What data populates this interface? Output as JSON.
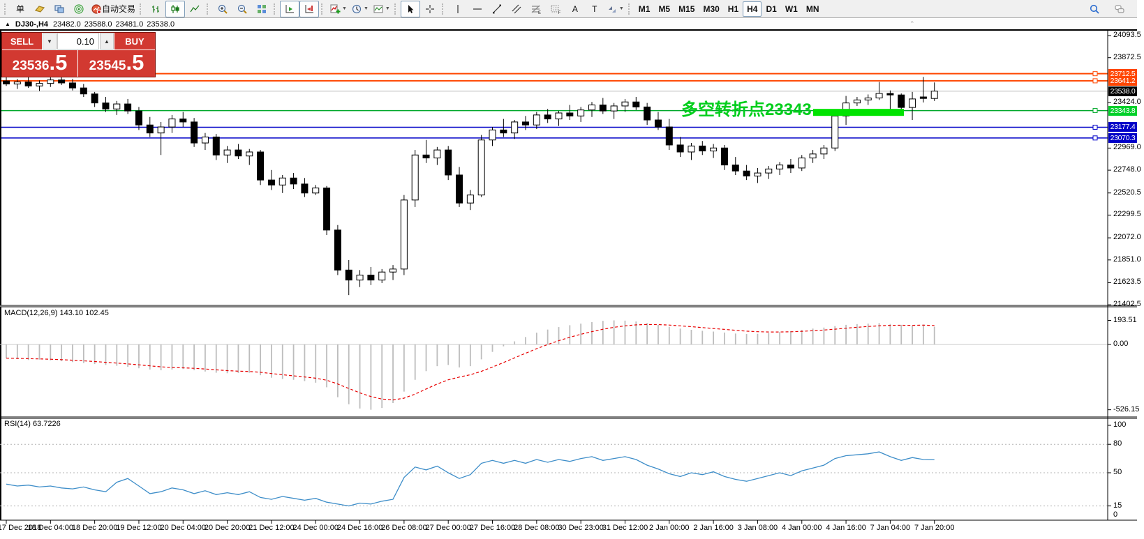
{
  "window": {
    "collapse_icon": "▲",
    "symbol_period": "DJ30-,H4",
    "open": "23482.0",
    "high": "23588.0",
    "low": "23481.0",
    "close": "23538.0"
  },
  "toolbar": {
    "groups": [
      {
        "items": [
          {
            "name": "new-order-button",
            "label": "单",
            "type": "text"
          },
          {
            "name": "gold-icon",
            "type": "icon"
          },
          {
            "name": "terminals-icon",
            "type": "icon"
          },
          {
            "name": "sonar-icon",
            "type": "icon"
          },
          {
            "name": "autotrade-button",
            "type": "icon-text",
            "label": "自动交易"
          }
        ]
      },
      {
        "items": [
          {
            "name": "bar-chart-icon",
            "type": "icon"
          },
          {
            "name": "candlestick-chart-icon",
            "type": "icon",
            "selected": true
          },
          {
            "name": "line-chart-icon",
            "type": "icon"
          }
        ]
      },
      {
        "items": [
          {
            "name": "zoom-in-icon",
            "type": "icon"
          },
          {
            "name": "zoom-out-icon",
            "type": "icon"
          },
          {
            "name": "tile-windows-icon",
            "type": "icon"
          }
        ]
      },
      {
        "items": [
          {
            "name": "autoscroll-icon",
            "type": "icon",
            "selected": true
          },
          {
            "name": "chart-shift-icon",
            "type": "icon",
            "selected": true
          }
        ]
      },
      {
        "items": [
          {
            "name": "indicators-icon",
            "type": "icon",
            "dropdown": true
          },
          {
            "name": "periods-clock-icon",
            "type": "icon",
            "dropdown": true
          },
          {
            "name": "templates-icon",
            "type": "icon",
            "dropdown": true
          }
        ]
      },
      {
        "items": [
          {
            "name": "cursor-icon",
            "type": "icon",
            "selected": true
          },
          {
            "name": "crosshair-icon",
            "type": "icon"
          }
        ]
      },
      {
        "items": [
          {
            "name": "vertical-line-icon",
            "type": "icon"
          },
          {
            "name": "horizontal-line-icon",
            "type": "icon"
          },
          {
            "name": "trendline-icon",
            "type": "icon"
          },
          {
            "name": "channel-icon",
            "type": "icon"
          },
          {
            "name": "fibonacci-icon",
            "type": "icon"
          },
          {
            "name": "grid-icon",
            "type": "icon"
          },
          {
            "name": "text-tool-button",
            "label": "A",
            "type": "text"
          },
          {
            "name": "label-tool-button",
            "label": "T",
            "type": "text"
          },
          {
            "name": "arrow-tools-icon",
            "type": "icon",
            "dropdown": true
          }
        ]
      },
      {
        "items": [
          {
            "name": "timeframe-m1",
            "label": "M1",
            "type": "tf"
          },
          {
            "name": "timeframe-m5",
            "label": "M5",
            "type": "tf"
          },
          {
            "name": "timeframe-m15",
            "label": "M15",
            "type": "tf"
          },
          {
            "name": "timeframe-m30",
            "label": "M30",
            "type": "tf"
          },
          {
            "name": "timeframe-h1",
            "label": "H1",
            "type": "tf"
          },
          {
            "name": "timeframe-h4",
            "label": "H4",
            "type": "tf",
            "selected": true
          },
          {
            "name": "timeframe-d1",
            "label": "D1",
            "type": "tf"
          },
          {
            "name": "timeframe-w1",
            "label": "W1",
            "type": "tf"
          },
          {
            "name": "timeframe-mn",
            "label": "MN",
            "type": "tf"
          }
        ]
      }
    ],
    "right_items": [
      {
        "name": "search-icon"
      },
      {
        "name": "chat-icon"
      }
    ]
  },
  "trade_panel": {
    "sell_label": "SELL",
    "buy_label": "BUY",
    "volume": "0.10",
    "spin_down": "▼",
    "spin_up": "▲",
    "sell_price_main": "23536",
    "sell_price_frac": ".5",
    "buy_price_main": "23545",
    "buy_price_frac": ".5"
  },
  "annotation": {
    "text": "多空转折点23343",
    "color": "#00ce1b"
  },
  "indicators": {
    "macd_label": "MACD(12,26,9) 143.10 102.45",
    "rsi_label": "RSI(14) 63.7226"
  },
  "price_axis": {
    "ticks": [
      24093.5,
      23872.5,
      23424.0,
      22969.0,
      22748.0,
      22520.5,
      22299.5,
      22072.0,
      21851.0,
      21623.5,
      21402.5
    ],
    "macd_ticks": [
      193.51,
      0.0,
      -526.15
    ],
    "rsi_ticks": [
      100,
      80,
      50,
      15,
      0
    ],
    "line_labels": [
      {
        "text": "23712.5",
        "value": 23712.5,
        "bg": "#ff4702"
      },
      {
        "text": "23641.2",
        "value": 23641.2,
        "bg": "#ff4702"
      },
      {
        "text": "23538.0",
        "value": 23538.0,
        "bg": "#000000"
      },
      {
        "text": "23343.8",
        "value": 23343.8,
        "bg": "#00d02a"
      },
      {
        "text": "23177.4",
        "value": 23177.4,
        "bg": "#0000c8"
      },
      {
        "text": "23070.3",
        "value": 23070.3,
        "bg": "#0000c8"
      }
    ]
  },
  "chart_data": {
    "type": "candlestick",
    "symbol": "DJ30-",
    "timeframe": "H4",
    "current_price": 23538.0,
    "ylim": [
      21402.5,
      24093.5
    ],
    "x_labels": [
      "17 Dec 2018",
      "18 Dec 04:00",
      "18 Dec 20:00",
      "19 Dec 12:00",
      "20 Dec 04:00",
      "20 Dec 20:00",
      "21 Dec 12:00",
      "24 Dec 00:00",
      "24 Dec 16:00",
      "26 Dec 08:00",
      "27 Dec 00:00",
      "27 Dec 16:00",
      "28 Dec 08:00",
      "30 Dec 23:00",
      "31 Dec 12:00",
      "2 Jan 00:00",
      "2 Jan 16:00",
      "3 Jan 08:00",
      "4 Jan 00:00",
      "4 Jan 16:00",
      "7 Jan 04:00",
      "7 Jan 20:00"
    ],
    "candles_ohlc": [
      [
        23640,
        23690,
        23590,
        23610
      ],
      [
        23610,
        23660,
        23560,
        23630
      ],
      [
        23630,
        23680,
        23570,
        23590
      ],
      [
        23590,
        23645,
        23540,
        23615
      ],
      [
        23615,
        23700,
        23580,
        23650
      ],
      [
        23650,
        23695,
        23600,
        23620
      ],
      [
        23620,
        23660,
        23545,
        23570
      ],
      [
        23570,
        23610,
        23480,
        23510
      ],
      [
        23510,
        23530,
        23380,
        23420
      ],
      [
        23420,
        23480,
        23330,
        23360
      ],
      [
        23360,
        23440,
        23300,
        23410
      ],
      [
        23410,
        23460,
        23310,
        23340
      ],
      [
        23340,
        23380,
        23150,
        23200
      ],
      [
        23200,
        23280,
        23080,
        23120
      ],
      [
        23120,
        23230,
        22900,
        23180
      ],
      [
        23180,
        23300,
        23120,
        23260
      ],
      [
        23260,
        23330,
        23180,
        23230
      ],
      [
        23230,
        23270,
        22980,
        23020
      ],
      [
        23020,
        23120,
        22950,
        23080
      ],
      [
        23080,
        23110,
        22850,
        22900
      ],
      [
        22900,
        22990,
        22820,
        22950
      ],
      [
        22950,
        23010,
        22860,
        22890
      ],
      [
        22890,
        22960,
        22800,
        22930
      ],
      [
        22930,
        22950,
        22600,
        22650
      ],
      [
        22650,
        22750,
        22550,
        22600
      ],
      [
        22600,
        22700,
        22520,
        22670
      ],
      [
        22670,
        22720,
        22560,
        22610
      ],
      [
        22610,
        22670,
        22480,
        22520
      ],
      [
        22520,
        22600,
        22500,
        22570
      ],
      [
        22570,
        22590,
        22100,
        22150
      ],
      [
        22150,
        22200,
        21700,
        21750
      ],
      [
        21750,
        21850,
        21500,
        21650
      ],
      [
        21650,
        21750,
        21580,
        21700
      ],
      [
        21700,
        21780,
        21600,
        21650
      ],
      [
        21650,
        21760,
        21620,
        21730
      ],
      [
        21730,
        21800,
        21650,
        21760
      ],
      [
        21760,
        22500,
        21700,
        22450
      ],
      [
        22450,
        22950,
        22380,
        22900
      ],
      [
        22900,
        23050,
        22820,
        22870
      ],
      [
        22870,
        22980,
        22800,
        22950
      ],
      [
        22950,
        22990,
        22650,
        22700
      ],
      [
        22700,
        22780,
        22380,
        22420
      ],
      [
        22420,
        22550,
        22350,
        22500
      ],
      [
        22500,
        23100,
        22480,
        23050
      ],
      [
        23050,
        23180,
        22990,
        23150
      ],
      [
        23150,
        23260,
        23080,
        23120
      ],
      [
        23120,
        23250,
        23060,
        23230
      ],
      [
        23230,
        23290,
        23150,
        23200
      ],
      [
        23200,
        23330,
        23160,
        23300
      ],
      [
        23300,
        23360,
        23220,
        23260
      ],
      [
        23260,
        23340,
        23190,
        23320
      ],
      [
        23320,
        23400,
        23250,
        23290
      ],
      [
        23290,
        23380,
        23230,
        23350
      ],
      [
        23350,
        23430,
        23280,
        23400
      ],
      [
        23400,
        23470,
        23310,
        23340
      ],
      [
        23340,
        23420,
        23260,
        23390
      ],
      [
        23390,
        23460,
        23330,
        23430
      ],
      [
        23430,
        23480,
        23350,
        23380
      ],
      [
        23380,
        23420,
        23200,
        23250
      ],
      [
        23250,
        23330,
        23150,
        23180
      ],
      [
        23180,
        23260,
        22950,
        23000
      ],
      [
        23000,
        23080,
        22880,
        22930
      ],
      [
        22930,
        23020,
        22850,
        22990
      ],
      [
        22990,
        23040,
        22900,
        22940
      ],
      [
        22940,
        23010,
        22870,
        22970
      ],
      [
        22970,
        23000,
        22750,
        22800
      ],
      [
        22800,
        22880,
        22700,
        22740
      ],
      [
        22740,
        22800,
        22650,
        22690
      ],
      [
        22690,
        22770,
        22620,
        22720
      ],
      [
        22720,
        22790,
        22660,
        22760
      ],
      [
        22760,
        22830,
        22700,
        22800
      ],
      [
        22800,
        22860,
        22720,
        22770
      ],
      [
        22770,
        22900,
        22740,
        22870
      ],
      [
        22870,
        22950,
        22820,
        22910
      ],
      [
        22910,
        23000,
        22860,
        22970
      ],
      [
        22970,
        23350,
        22940,
        23290
      ],
      [
        23290,
        23490,
        23200,
        23420
      ],
      [
        23420,
        23480,
        23390,
        23450
      ],
      [
        23450,
        23505,
        23400,
        23470
      ],
      [
        23470,
        23630,
        23450,
        23515
      ],
      [
        23515,
        23545,
        23355,
        23500
      ],
      [
        23500,
        23515,
        23330,
        23375
      ],
      [
        23375,
        23530,
        23250,
        23460
      ],
      [
        23480,
        23680,
        23425,
        23465
      ],
      [
        23465,
        23625,
        23440,
        23538
      ]
    ],
    "hlines": [
      {
        "value": 23712.5,
        "color": "#ff4702",
        "width": 2,
        "handle": true
      },
      {
        "value": 23641.2,
        "color": "#ff4702",
        "width": 2,
        "handle": true
      },
      {
        "value": 23538.0,
        "color": "#b9b9b9",
        "width": 1,
        "handle": false
      },
      {
        "value": 23343.8,
        "color": "#00a82a",
        "width": 1.5,
        "handle": true
      },
      {
        "value": 23177.4,
        "color": "#0000c8",
        "width": 1.5,
        "handle": true
      },
      {
        "value": 23070.3,
        "color": "#0000c8",
        "width": 1.5,
        "handle": true
      }
    ],
    "highlight_rect": {
      "price": 23343.8,
      "x": 1165,
      "width": 130,
      "height": 10,
      "color": "#00e300"
    },
    "macd": {
      "values": [
        -110,
        -118,
        -125,
        -122,
        -128,
        -135,
        -142,
        -150,
        -158,
        -165,
        -172,
        -180,
        -192,
        -202,
        -208,
        -202,
        -198,
        -208,
        -218,
        -228,
        -232,
        -230,
        -228,
        -248,
        -268,
        -278,
        -285,
        -295,
        -308,
        -345,
        -425,
        -482,
        -516,
        -526,
        -512,
        -472,
        -380,
        -285,
        -215,
        -175,
        -165,
        -185,
        -175,
        -120,
        -60,
        -15,
        25,
        60,
        95,
        120,
        140,
        155,
        168,
        180,
        190,
        194,
        192,
        185,
        172,
        158,
        142,
        128,
        118,
        110,
        104,
        96,
        88,
        84,
        86,
        92,
        100,
        108,
        118,
        128,
        136,
        148,
        158,
        164,
        168,
        172,
        165,
        158,
        152,
        160,
        143.1
      ],
      "bar_color": "#bdbdbd",
      "signal_color": "#e80000",
      "range_max": 193.51,
      "range_min": -526.15
    },
    "rsi": {
      "values": [
        38,
        36,
        37,
        35,
        36,
        34,
        33,
        35,
        32,
        30,
        40,
        44,
        36,
        28,
        30,
        34,
        32,
        28,
        31,
        27,
        29,
        27,
        30,
        24,
        22,
        25,
        23,
        21,
        23,
        19,
        17,
        15,
        18,
        17,
        20,
        22,
        45,
        56,
        53,
        57,
        50,
        44,
        48,
        60,
        63,
        60,
        63,
        60,
        64,
        61,
        64,
        62,
        65,
        67,
        63,
        65,
        67,
        64,
        58,
        54,
        49,
        46,
        50,
        48,
        51,
        46,
        43,
        41,
        44,
        47,
        50,
        47,
        52,
        55,
        58,
        65,
        68,
        69,
        70,
        72,
        67,
        63,
        66,
        64,
        63.7
      ],
      "line_color": "#3e8ec9",
      "levels": [
        80,
        50,
        15
      ],
      "range": [
        0,
        100
      ]
    }
  }
}
